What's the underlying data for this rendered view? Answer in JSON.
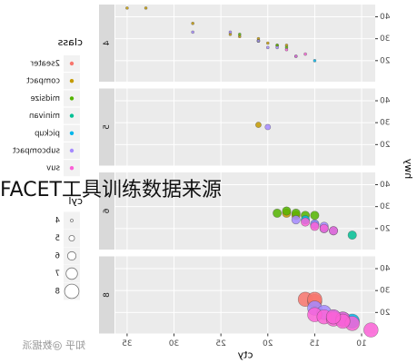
{
  "chart_data": {
    "type": "scatter",
    "x_label": "cty",
    "y_label": "hwy",
    "xlim": [
      8.55,
      36.25
    ],
    "xticks": [
      10,
      15,
      20,
      25,
      30,
      35
    ],
    "ylim": [
      10.4,
      45.6
    ],
    "yticks": [
      20,
      30,
      40
    ],
    "grid": true,
    "legend": {
      "title": "class",
      "items": [
        {
          "name": "2seater",
          "color": "#F8766D"
        },
        {
          "name": "compact",
          "color": "#C49A00"
        },
        {
          "name": "midsize",
          "color": "#53B400"
        },
        {
          "name": "minivan",
          "color": "#00C094"
        },
        {
          "name": "pickup",
          "color": "#00B6EB"
        },
        {
          "name": "subcompact",
          "color": "#A58AFF"
        },
        {
          "name": "suv",
          "color": "#FB61D7"
        }
      ]
    },
    "size_legend": {
      "title": "cyl",
      "values": [
        4,
        5,
        6,
        7,
        8
      ]
    },
    "facets": [
      {
        "label": 4,
        "series": [
          {
            "name": "compact",
            "color": "#C49A00",
            "x": [
              35,
              33,
              28,
              24,
              23,
              21,
              21,
              20,
              19,
              18
            ],
            "y": [
              44,
              44,
              37,
              32,
              31,
              29,
              30,
              28,
              27,
              27
            ]
          },
          {
            "name": "midsize",
            "color": "#53B400",
            "x": [
              23,
              21,
              19,
              18
            ],
            "y": [
              32,
              29,
              27,
              26
            ]
          },
          {
            "name": "pickup",
            "color": "#00B6EB",
            "x": [
              15,
              17
            ],
            "y": [
              20,
              22
            ]
          },
          {
            "name": "subcompact",
            "color": "#A58AFF",
            "x": [
              28,
              24,
              20,
              19,
              21
            ],
            "y": [
              33,
              33,
              26,
              26,
              29
            ]
          },
          {
            "name": "suv",
            "color": "#FB61D7",
            "x": [
              18,
              17,
              16
            ],
            "y": [
              25,
              22,
              23
            ]
          }
        ]
      },
      {
        "label": 5,
        "series": [
          {
            "name": "compact",
            "color": "#C49A00",
            "x": [
              21
            ],
            "y": [
              29
            ]
          },
          {
            "name": "subcompact",
            "color": "#A58AFF",
            "x": [
              20
            ],
            "y": [
              28
            ]
          }
        ]
      },
      {
        "label": 6,
        "series": [
          {
            "name": "compact",
            "color": "#C49A00",
            "x": [
              18,
              17
            ],
            "y": [
              27,
              26
            ]
          },
          {
            "name": "midsize",
            "color": "#53B400",
            "x": [
              19,
              18,
              17,
              16,
              15
            ],
            "y": [
              27,
              28,
              27,
              26,
              26
            ]
          },
          {
            "name": "minivan",
            "color": "#00C094",
            "x": [
              11
            ],
            "y": [
              17
            ]
          },
          {
            "name": "pickup",
            "color": "#00B6EB",
            "x": [
              16,
              15,
              14,
              13
            ],
            "y": [
              24,
              22,
              20,
              19
            ]
          },
          {
            "name": "subcompact",
            "color": "#A58AFF",
            "x": [
              17,
              15,
              14
            ],
            "y": [
              24,
              22,
              21
            ]
          },
          {
            "name": "suv",
            "color": "#FB61D7",
            "x": [
              16,
              15,
              14,
              13
            ],
            "y": [
              23,
              21,
              20,
              19
            ]
          }
        ]
      },
      {
        "label": 8,
        "series": [
          {
            "name": "2seater",
            "color": "#F8766D",
            "x": [
              16,
              15,
              15
            ],
            "y": [
              26,
              25,
              26
            ]
          },
          {
            "name": "pickup",
            "color": "#00B6EB",
            "x": [
              13,
              12,
              11
            ],
            "y": [
              18,
              17,
              16
            ]
          },
          {
            "name": "subcompact",
            "color": "#A58AFF",
            "x": [
              15,
              14
            ],
            "y": [
              22,
              20
            ]
          },
          {
            "name": "suv",
            "color": "#FB61D7",
            "x": [
              15,
              14,
              13,
              12,
              11,
              12,
              13,
              9
            ],
            "y": [
              19,
              18,
              17,
              17,
              15,
              16,
              18,
              12
            ]
          }
        ]
      }
    ],
    "overlay_text": "FACET工具训练数据来源",
    "watermark": "知乎 @数据派"
  }
}
